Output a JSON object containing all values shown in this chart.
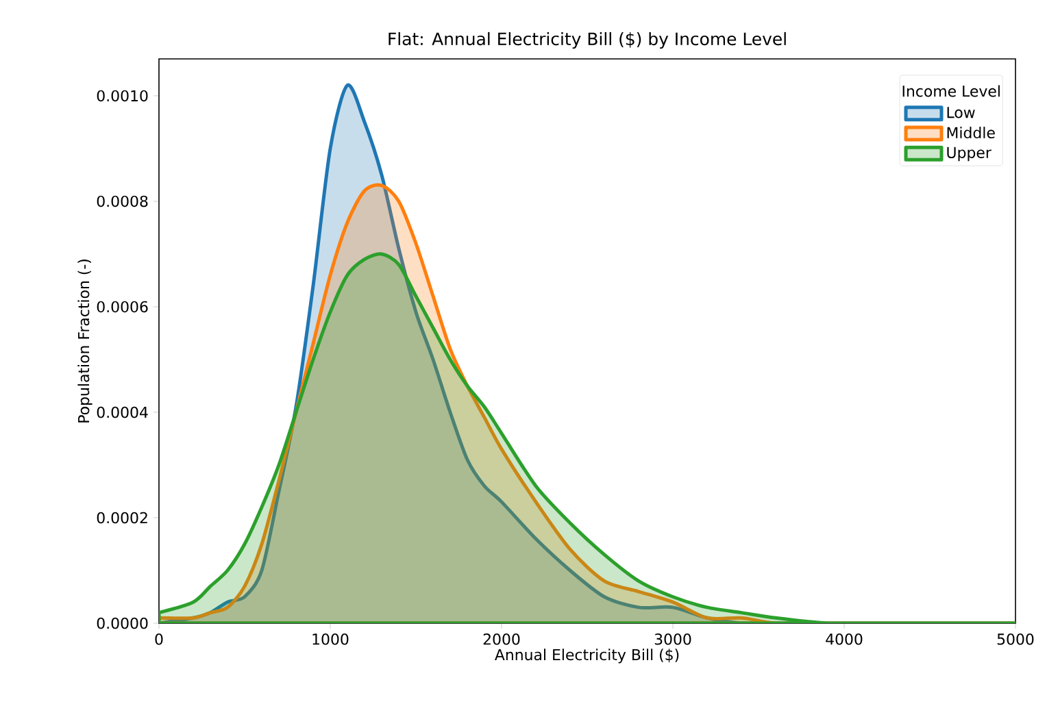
{
  "chart_data": {
    "type": "area",
    "title": "Flat: Annual Electricity Bill ($) by Income Level",
    "xlabel": "Annual Electricity Bill ($)",
    "ylabel": "Population Fraction (-)",
    "legend_title": "Income Level",
    "legend": "top right",
    "grid": false,
    "x": [
      0,
      200,
      300,
      400,
      500,
      600,
      700,
      800,
      900,
      1000,
      1100,
      1200,
      1300,
      1400,
      1500,
      1600,
      1700,
      1800,
      1900,
      2000,
      2200,
      2400,
      2600,
      2800,
      3000,
      3200,
      3400,
      3600,
      3900,
      4200,
      4500,
      5000
    ],
    "series": [
      {
        "name": "Low",
        "color": "#1f77b4",
        "values": [
          0,
          1e-05,
          2e-05,
          4e-05,
          5e-05,
          0.0001,
          0.00025,
          0.00041,
          0.00064,
          0.0009,
          0.00102,
          0.00095,
          0.00085,
          0.00071,
          0.00059,
          0.0005,
          0.0004,
          0.00031,
          0.00026,
          0.00023,
          0.00016,
          0.0001,
          5e-05,
          3e-05,
          3e-05,
          1e-05,
          0,
          0,
          0,
          0,
          0,
          0
        ]
      },
      {
        "name": "Middle",
        "color": "#ff7f0e",
        "values": [
          1e-05,
          1e-05,
          2e-05,
          3e-05,
          7e-05,
          0.00015,
          0.00027,
          0.0004,
          0.00053,
          0.00066,
          0.00076,
          0.00082,
          0.00083,
          0.0008,
          0.00072,
          0.00062,
          0.00052,
          0.00045,
          0.00039,
          0.00033,
          0.00023,
          0.00014,
          8e-05,
          6e-05,
          4e-05,
          1e-05,
          1e-05,
          0,
          0,
          0,
          0,
          0
        ]
      },
      {
        "name": "Upper",
        "color": "#2ca02c",
        "values": [
          2e-05,
          4e-05,
          7e-05,
          0.0001,
          0.00015,
          0.00022,
          0.0003,
          0.0004,
          0.0005,
          0.00059,
          0.00066,
          0.00069,
          0.0007,
          0.00068,
          0.00062,
          0.00056,
          0.0005,
          0.00045,
          0.00041,
          0.00036,
          0.00026,
          0.00019,
          0.00013,
          8e-05,
          5e-05,
          3e-05,
          2e-05,
          1e-05,
          0,
          0,
          0,
          0
        ]
      }
    ],
    "xlim": [
      0,
      5000
    ],
    "xticks": [
      0,
      1000,
      2000,
      3000,
      4000,
      5000
    ],
    "ylim": [
      0,
      0.00107
    ],
    "yticks": [
      {
        "value": 0,
        "label": "0.0000"
      },
      {
        "value": 0.0002,
        "label": "0.0002"
      },
      {
        "value": 0.0004,
        "label": "0.0004"
      },
      {
        "value": 0.0006,
        "label": "0.0006"
      },
      {
        "value": 0.0008,
        "label": "0.0008"
      },
      {
        "value": 0.001,
        "label": "0.0010"
      }
    ]
  }
}
